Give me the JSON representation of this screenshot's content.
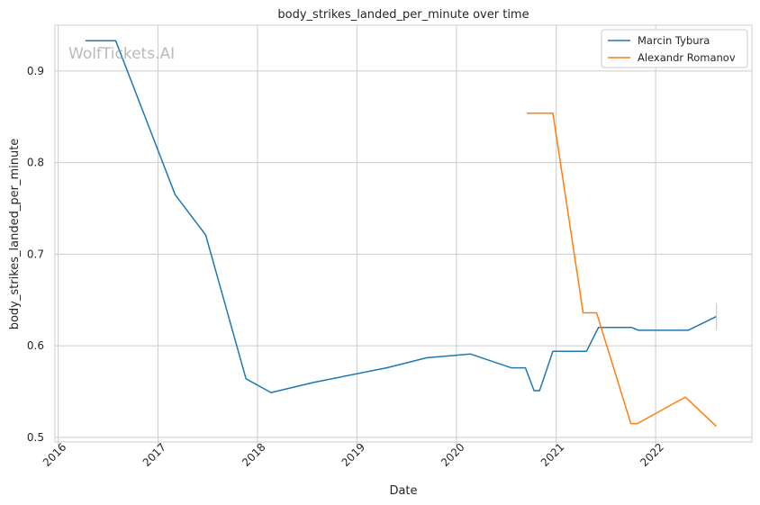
{
  "watermark": "WolfTickets.AI",
  "chart_data": {
    "type": "line",
    "title": "body_strikes_landed_per_minute over time",
    "xlabel": "Date",
    "ylabel": "body_strikes_landed_per_minute",
    "x_ticks": [
      "2016",
      "2017",
      "2018",
      "2019",
      "2020",
      "2021",
      "2022"
    ],
    "y_ticks": [
      "0.5",
      "0.6",
      "0.7",
      "0.8",
      "0.9"
    ],
    "xlim": [
      "2015-12-20",
      "2022-12-20"
    ],
    "ylim": [
      0.495,
      0.95
    ],
    "grid": true,
    "legend_position": "top-right",
    "series": [
      {
        "name": "Marcin Tybura",
        "color": "#1f77b4",
        "points": [
          [
            "2016-04-10",
            0.933
          ],
          [
            "2016-07-30",
            0.933
          ],
          [
            "2017-03-05",
            0.765
          ],
          [
            "2017-06-25",
            0.721
          ],
          [
            "2017-11-20",
            0.564
          ],
          [
            "2018-02-20",
            0.549
          ],
          [
            "2018-07-25",
            0.56
          ],
          [
            "2019-04-20",
            0.576
          ],
          [
            "2019-09-15",
            0.587
          ],
          [
            "2020-02-22",
            0.591
          ],
          [
            "2020-07-20",
            0.576
          ],
          [
            "2020-09-10",
            0.576
          ],
          [
            "2020-10-12",
            0.551
          ],
          [
            "2020-11-01",
            0.551
          ],
          [
            "2020-12-20",
            0.594
          ],
          [
            "2021-04-22",
            0.594
          ],
          [
            "2021-06-05",
            0.62
          ],
          [
            "2021-10-05",
            0.62
          ],
          [
            "2021-10-30",
            0.617
          ],
          [
            "2022-04-30",
            0.617
          ],
          [
            "2022-08-12",
            0.632
          ]
        ]
      },
      {
        "name": "Alexandr Romanov",
        "color": "#ff7f0e",
        "points": [
          [
            "2020-09-15",
            0.854
          ],
          [
            "2020-12-20",
            0.854
          ],
          [
            "2021-04-10",
            0.636
          ],
          [
            "2021-05-29",
            0.636
          ],
          [
            "2021-10-02",
            0.515
          ],
          [
            "2021-10-25",
            0.515
          ],
          [
            "2022-04-20",
            0.544
          ],
          [
            "2022-08-12",
            0.512
          ]
        ]
      }
    ]
  }
}
